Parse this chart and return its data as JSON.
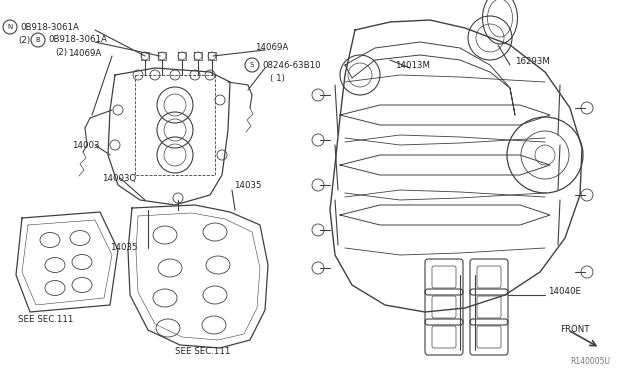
{
  "bg_color": "#ffffff",
  "line_color": "#404040",
  "text_color": "#222222",
  "figsize": [
    6.4,
    3.72
  ],
  "dpi": 100,
  "xlim": [
    0,
    640
  ],
  "ylim": [
    0,
    372
  ]
}
